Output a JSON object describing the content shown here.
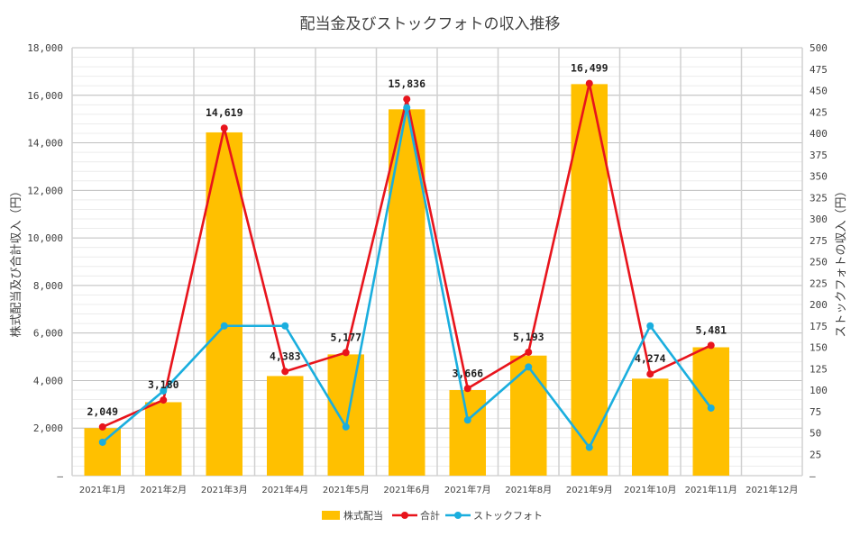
{
  "chart_data": {
    "type": "bar",
    "title": "配当金及びストックフォトの収入推移",
    "categories": [
      "2021年1月",
      "2021年2月",
      "2021年3月",
      "2021年4月",
      "2021年5月",
      "2021年6月",
      "2021年7月",
      "2021年8月",
      "2021年9月",
      "2021年10月",
      "2021年11月",
      "2021年12月"
    ],
    "ylabel": "株式配当及び合計収入（円）",
    "y2label": "ストックフォトの収入（円）",
    "ylim": [
      0,
      18000
    ],
    "y2lim": [
      0,
      500
    ],
    "yticks": [
      "–",
      "2,000",
      "4,000",
      "6,000",
      "8,000",
      "10,000",
      "12,000",
      "14,000",
      "16,000",
      "18,000"
    ],
    "y2ticks": [
      "–",
      "25",
      "50",
      "75",
      "100",
      "125",
      "150",
      "175",
      "200",
      "225",
      "250",
      "275",
      "300",
      "325",
      "350",
      "375",
      "400",
      "425",
      "450",
      "475",
      "500"
    ],
    "series": [
      {
        "name": "株式配当",
        "type": "bar",
        "axis": "left",
        "color": "#FFC000",
        "values": [
          2000,
          3090,
          14440,
          4190,
          5100,
          15410,
          3600,
          5050,
          16470,
          4080,
          5400,
          null
        ]
      },
      {
        "name": "合計",
        "type": "line",
        "axis": "left",
        "color": "#E8141C",
        "values": [
          2049,
          3180,
          14619,
          4383,
          5177,
          15836,
          3666,
          5193,
          16499,
          4274,
          5481,
          null
        ]
      },
      {
        "name": "ストックフォト",
        "type": "line",
        "axis": "right",
        "color": "#1AAEDE",
        "values": [
          39,
          99,
          175,
          175,
          57,
          430,
          65,
          127,
          33,
          175,
          79,
          null
        ]
      }
    ],
    "data_labels": [
      "2,049",
      "3,180",
      "14,619",
      "4,383",
      "5,177",
      "15,836",
      "3,666",
      "5,193",
      "16,499",
      "4,274",
      "5,481",
      ""
    ],
    "legend_position": "bottom",
    "grid": true
  }
}
